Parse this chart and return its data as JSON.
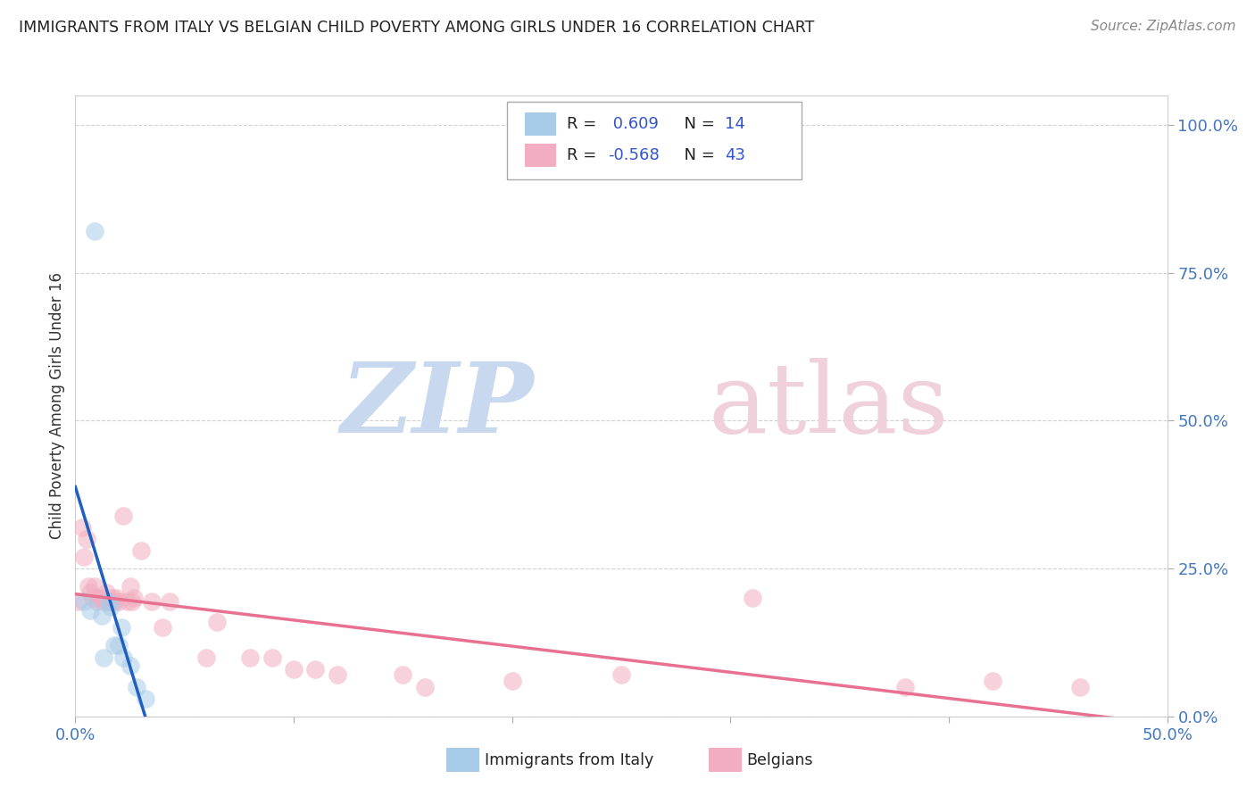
{
  "title": "IMMIGRANTS FROM ITALY VS BELGIAN CHILD POVERTY AMONG GIRLS UNDER 16 CORRELATION CHART",
  "source": "Source: ZipAtlas.com",
  "ylabel": "Child Poverty Among Girls Under 16",
  "xlim": [
    0.0,
    0.5
  ],
  "ylim": [
    0.0,
    1.05
  ],
  "xtick_labels": [
    "0.0%",
    "50.0%"
  ],
  "xtick_positions": [
    0.0,
    0.5
  ],
  "ytick_labels": [
    "100.0%",
    "75.0%",
    "50.0%",
    "25.0%",
    "0.0%"
  ],
  "ytick_positions": [
    1.0,
    0.75,
    0.5,
    0.25,
    0.0
  ],
  "color_italy": "#a8cce8",
  "color_belgian": "#f2aec0",
  "color_line_italy": "#2060c0",
  "color_line_belgian": "#e87090",
  "color_trendline_dashed": "#a8cce8",
  "italy_x": [
    0.004,
    0.007,
    0.009,
    0.012,
    0.013,
    0.015,
    0.016,
    0.018,
    0.02,
    0.021,
    0.022,
    0.025,
    0.028,
    0.032
  ],
  "italy_y": [
    0.195,
    0.18,
    0.82,
    0.17,
    0.1,
    0.195,
    0.185,
    0.12,
    0.12,
    0.15,
    0.1,
    0.085,
    0.05,
    0.03
  ],
  "belgian_x": [
    0.001,
    0.003,
    0.004,
    0.005,
    0.006,
    0.007,
    0.008,
    0.009,
    0.01,
    0.011,
    0.012,
    0.013,
    0.014,
    0.015,
    0.016,
    0.017,
    0.018,
    0.019,
    0.02,
    0.022,
    0.024,
    0.025,
    0.026,
    0.027,
    0.03,
    0.035,
    0.04,
    0.043,
    0.06,
    0.065,
    0.08,
    0.09,
    0.1,
    0.11,
    0.12,
    0.15,
    0.16,
    0.2,
    0.25,
    0.31,
    0.38,
    0.42,
    0.46
  ],
  "belgian_y": [
    0.195,
    0.32,
    0.27,
    0.3,
    0.22,
    0.21,
    0.2,
    0.22,
    0.195,
    0.2,
    0.2,
    0.195,
    0.21,
    0.195,
    0.195,
    0.2,
    0.195,
    0.2,
    0.195,
    0.34,
    0.195,
    0.22,
    0.195,
    0.2,
    0.28,
    0.195,
    0.15,
    0.195,
    0.1,
    0.16,
    0.1,
    0.1,
    0.08,
    0.08,
    0.07,
    0.07,
    0.05,
    0.06,
    0.07,
    0.2,
    0.05,
    0.06,
    0.05
  ],
  "title_color": "#222222",
  "axis_color": "#333333",
  "tick_color": "#4477bb",
  "grid_color": "#cccccc",
  "watermark_zip_color": "#c8d8ef",
  "watermark_atlas_color": "#f0d0da"
}
